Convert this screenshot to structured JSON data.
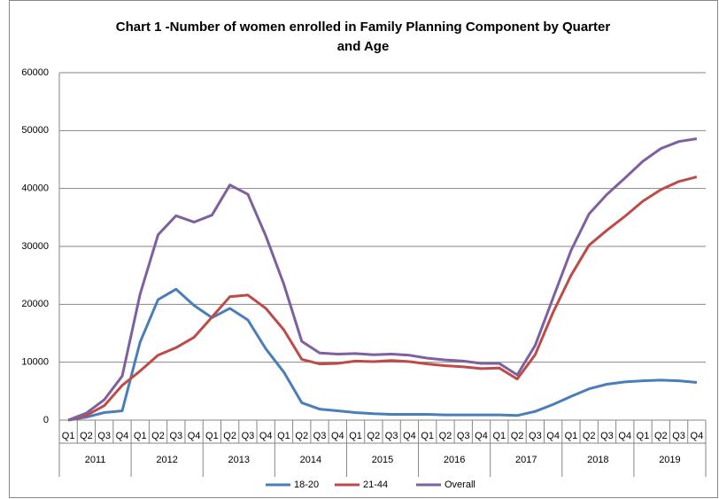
{
  "chart_data": {
    "type": "line",
    "title": [
      "Chart 1 -Number of women enrolled in Family Planning Component by Quarter",
      "and Age"
    ],
    "categories": [
      "Q1",
      "Q2",
      "Q3",
      "Q4",
      "Q1",
      "Q2",
      "Q3",
      "Q4",
      "Q1",
      "Q2",
      "Q3",
      "Q4",
      "Q1",
      "Q2",
      "Q3",
      "Q4",
      "Q1",
      "Q2",
      "Q3",
      "Q4",
      "Q1",
      "Q2",
      "Q3",
      "Q4",
      "Q1",
      "Q2",
      "Q3",
      "Q4",
      "Q1",
      "Q2",
      "Q3",
      "Q4",
      "Q1",
      "Q2",
      "Q3",
      "Q4"
    ],
    "category_groups": [
      "2011",
      "2012",
      "2013",
      "2014",
      "2015",
      "2016",
      "2017",
      "2018",
      "2019"
    ],
    "series": [
      {
        "name": "18-20",
        "color": "#4a7ebb",
        "values": [
          0,
          500,
          1300,
          1600,
          13500,
          20800,
          22600,
          19800,
          17700,
          19300,
          17300,
          12300,
          8300,
          3000,
          1900,
          1600,
          1300,
          1100,
          1000,
          1000,
          1000,
          900,
          900,
          900,
          900,
          800,
          1500,
          2700,
          4100,
          5400,
          6200,
          6600,
          6800,
          6900,
          6800,
          6500
        ]
      },
      {
        "name": "21-44",
        "color": "#be4b48",
        "values": [
          0,
          800,
          2500,
          6000,
          8500,
          11200,
          12500,
          14300,
          17800,
          21300,
          21600,
          19300,
          15600,
          10500,
          9700,
          9800,
          10200,
          10100,
          10300,
          10100,
          9700,
          9400,
          9200,
          8900,
          9000,
          7100,
          11300,
          18600,
          25000,
          30200,
          32800,
          35200,
          37800,
          39800,
          41200,
          42000
        ]
      },
      {
        "name": "Overall",
        "color": "#7d60a0",
        "values": [
          0,
          1200,
          3500,
          7600,
          21800,
          32000,
          35300,
          34200,
          35400,
          40600,
          39000,
          31800,
          23500,
          13600,
          11600,
          11400,
          11500,
          11300,
          11400,
          11200,
          10700,
          10400,
          10200,
          9800,
          9800,
          7800,
          12900,
          21100,
          29300,
          35600,
          39000,
          41800,
          44700,
          46900,
          48100,
          48600
        ]
      }
    ],
    "ylim": [
      0,
      60000
    ],
    "yticks": [
      0,
      10000,
      20000,
      30000,
      40000,
      50000,
      60000
    ],
    "grid": true,
    "legend": "bottom"
  }
}
